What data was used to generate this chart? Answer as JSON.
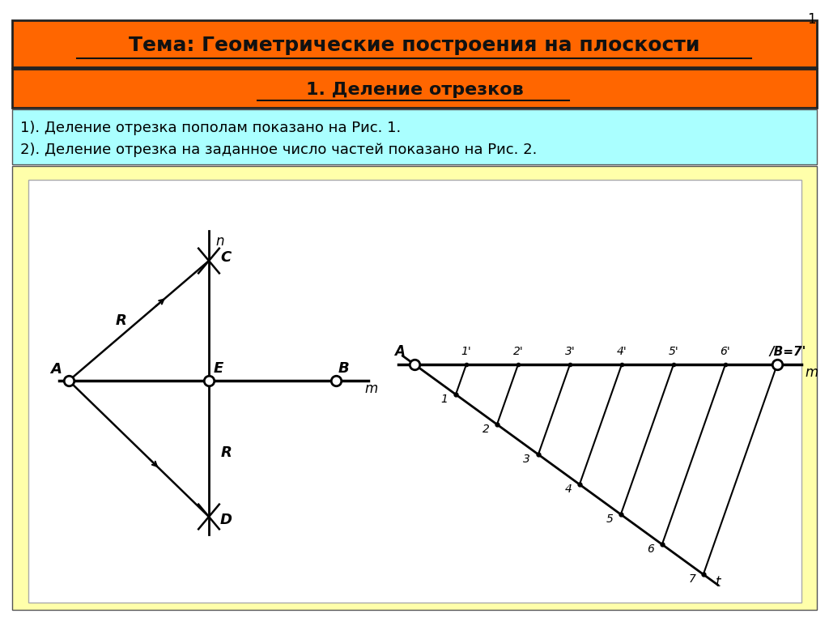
{
  "title1": "Тема: Геометрические построения на плоскости",
  "title2": "1. Деление отрезков",
  "text_line1": "1). Деление отрезка пополам показано на Рис. 1.",
  "text_line2": "2). Деление отрезка на заданное число частей показано на Рис. 2.",
  "bg_color": "#FFFFFF",
  "header1_color": "#FF6600",
  "header2_color": "#FF6600",
  "text_bg_color": "#AAFFFF",
  "diagram_bg_color": "#FFFFAA",
  "page_number": "1"
}
